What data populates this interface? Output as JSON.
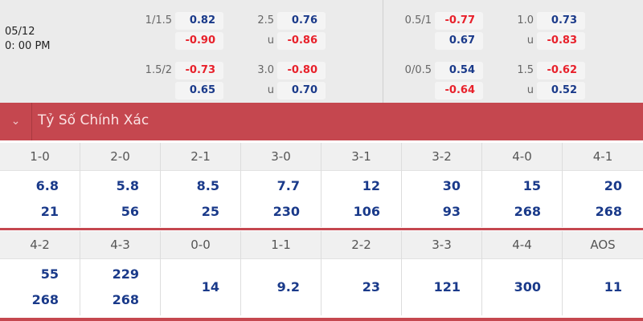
{
  "match": {
    "date": "05/12",
    "time": "0: 00 PM"
  },
  "odds_left": [
    {
      "hcap": "1/1.5",
      "h1": "0.82",
      "h2": "-0.90",
      "ou": "2.5",
      "ou_u": "u",
      "o1": "0.76",
      "o2": "-0.86"
    },
    {
      "hcap": "1.5/2",
      "h1": "-0.73",
      "h2": "0.65",
      "ou": "3.0",
      "ou_u": "u",
      "o1": "-0.80",
      "o2": "0.70"
    }
  ],
  "odds_right": [
    {
      "hcap": "0.5/1",
      "h1": "-0.77",
      "h2": "0.67",
      "ou": "1.0",
      "ou_u": "u",
      "o1": "0.73",
      "o2": "-0.83"
    },
    {
      "hcap": "0/0.5",
      "h1": "0.54",
      "h2": "-0.64",
      "ou": "1.5",
      "ou_u": "u",
      "o1": "-0.62",
      "o2": "0.52"
    }
  ],
  "section": {
    "title": "Tỷ Số Chính Xác",
    "icon": "chevron-down-icon",
    "accent": "#c5474f"
  },
  "scores_row1": [
    {
      "score": "1-0",
      "v1": "6.8",
      "v2": "21"
    },
    {
      "score": "2-0",
      "v1": "5.8",
      "v2": "56"
    },
    {
      "score": "2-1",
      "v1": "8.5",
      "v2": "25"
    },
    {
      "score": "3-0",
      "v1": "7.7",
      "v2": "230"
    },
    {
      "score": "3-1",
      "v1": "12",
      "v2": "106"
    },
    {
      "score": "3-2",
      "v1": "30",
      "v2": "93"
    },
    {
      "score": "4-0",
      "v1": "15",
      "v2": "268"
    },
    {
      "score": "4-1",
      "v1": "20",
      "v2": "268"
    }
  ],
  "scores_row2": [
    {
      "score": "4-2",
      "v1": "55",
      "v2": "268"
    },
    {
      "score": "4-3",
      "v1": "229",
      "v2": "268"
    },
    {
      "score": "0-0",
      "v1": "14"
    },
    {
      "score": "1-1",
      "v1": "9.2"
    },
    {
      "score": "2-2",
      "v1": "23"
    },
    {
      "score": "3-3",
      "v1": "121"
    },
    {
      "score": "4-4",
      "v1": "300"
    },
    {
      "score": "AOS",
      "v1": "11"
    }
  ]
}
